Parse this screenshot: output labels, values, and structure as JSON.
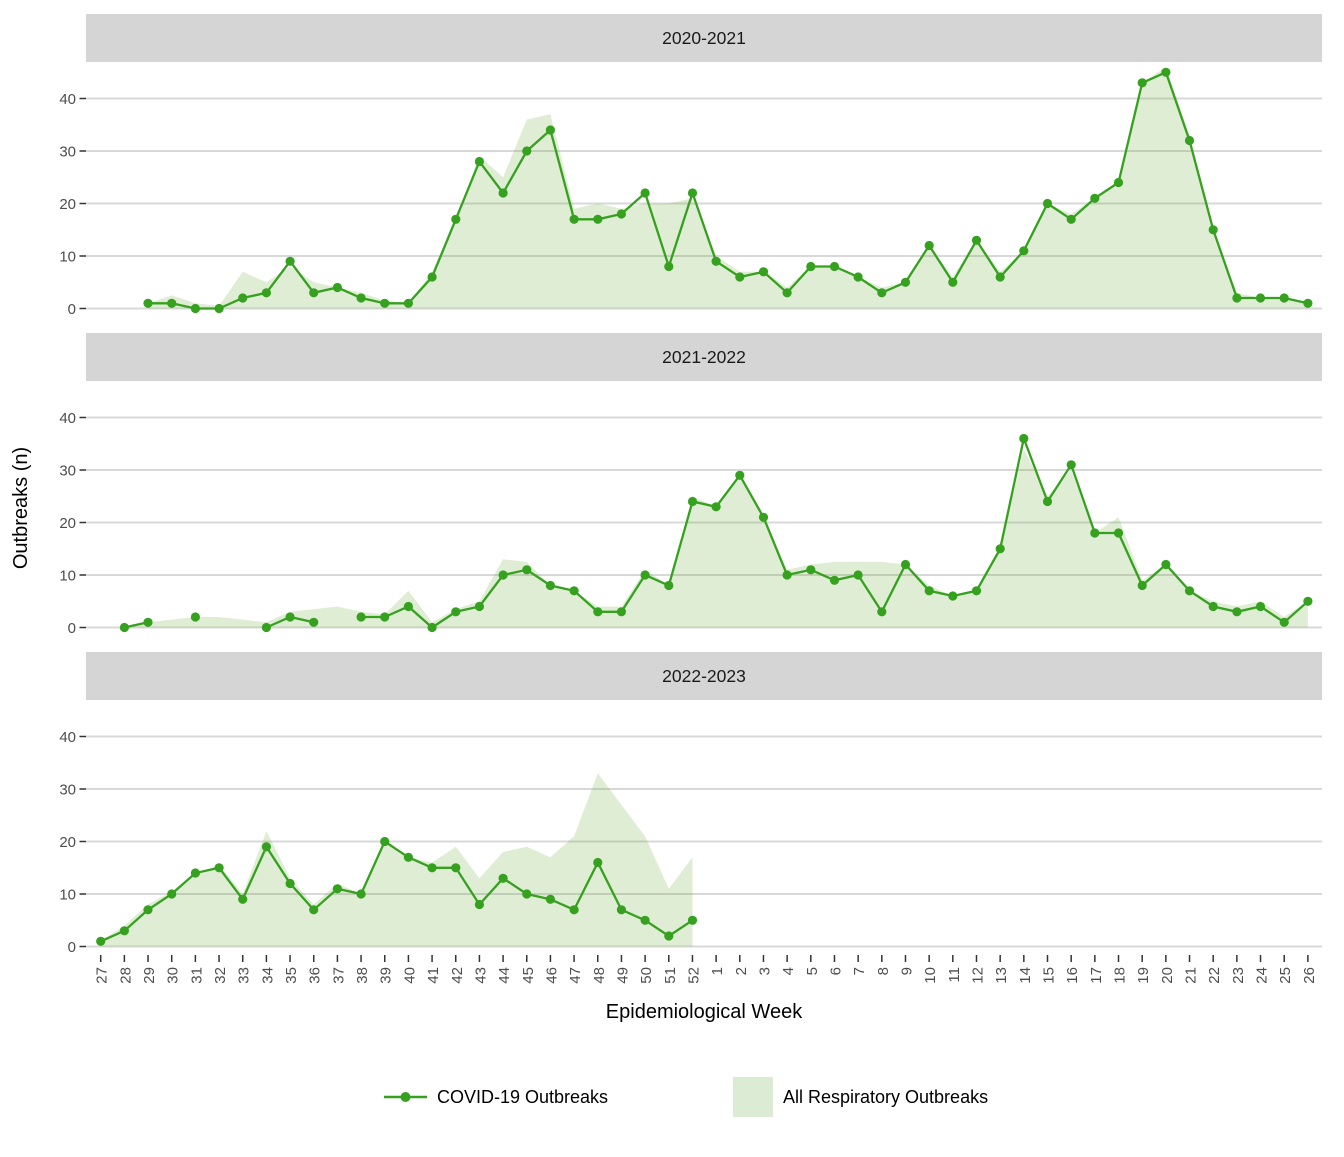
{
  "chart_data": {
    "type": "area+line",
    "xlabel": "Epidemiological Week",
    "ylabel": "Outbreaks (n)",
    "ylim": [
      0,
      47
    ],
    "y_ticks": [
      0,
      10,
      20,
      30,
      40
    ],
    "grid": "horizontal-major-only",
    "legend_position": "bottom",
    "categories": [
      "27",
      "28",
      "29",
      "30",
      "31",
      "32",
      "33",
      "34",
      "35",
      "36",
      "37",
      "38",
      "39",
      "40",
      "41",
      "42",
      "43",
      "44",
      "45",
      "46",
      "47",
      "48",
      "49",
      "50",
      "51",
      "52",
      "1",
      "2",
      "3",
      "4",
      "5",
      "6",
      "7",
      "8",
      "9",
      "10",
      "11",
      "12",
      "13",
      "14",
      "15",
      "16",
      "17",
      "18",
      "19",
      "20",
      "21",
      "22",
      "23",
      "24",
      "25",
      "26"
    ],
    "facets": [
      {
        "title": "2020-2021",
        "series": [
          {
            "name": "COVID-19 Outbreaks",
            "type": "line",
            "values": [
              null,
              null,
              1,
              1,
              0,
              0,
              2,
              3,
              9,
              3,
              4,
              2,
              1,
              1,
              6,
              17,
              28,
              22,
              30,
              34,
              17,
              17,
              18,
              22,
              8,
              22,
              9,
              6,
              7,
              3,
              8,
              8,
              6,
              3,
              5,
              12,
              5,
              13,
              6,
              11,
              20,
              17,
              21,
              24,
              43,
              45,
              32,
              15,
              2,
              2,
              2,
              1
            ]
          },
          {
            "name": "All Respiratory Outbreaks",
            "type": "area",
            "values": [
              null,
              null,
              1,
              2.5,
              1,
              0.5,
              7,
              5,
              8,
              5,
              4,
              3,
              1.5,
              1,
              7,
              17,
              29,
              25,
              36,
              37,
              19,
              20,
              19,
              20,
              20,
              21,
              10,
              7,
              7,
              4,
              8,
              8,
              6,
              4,
              5,
              12,
              6,
              13,
              7,
              11,
              20,
              18,
              21,
              24,
              43,
              46,
              33,
              15,
              3,
              2,
              2,
              1
            ]
          }
        ]
      },
      {
        "title": "2021-2022",
        "series": [
          {
            "name": "COVID-19 Outbreaks",
            "type": "line",
            "values": [
              null,
              0,
              1,
              null,
              2,
              null,
              null,
              0,
              2,
              1,
              null,
              2,
              2,
              4,
              0,
              3,
              4,
              10,
              11,
              8,
              7,
              3,
              3,
              10,
              8,
              24,
              23,
              29,
              21,
              10,
              11,
              9,
              10,
              3,
              12,
              7,
              6,
              7,
              15,
              36,
              24,
              31,
              18,
              18,
              8,
              12,
              7,
              4,
              3,
              4,
              1,
              5
            ]
          },
          {
            "name": "All Respiratory Outbreaks",
            "type": "area",
            "values": [
              null,
              0,
              1,
              1.5,
              2,
              2,
              1.5,
              1,
              3,
              3.5,
              4,
              3,
              2.5,
              7,
              1,
              3.5,
              5,
              13,
              12.5,
              8,
              7,
              4,
              4,
              11,
              8,
              25,
              23,
              29,
              21,
              11,
              12,
              12.5,
              12.5,
              12.5,
              12,
              8,
              6,
              7,
              15,
              34,
              25,
              30,
              18,
              21,
              9,
              12,
              7,
              5,
              4,
              5,
              2,
              5
            ]
          }
        ]
      },
      {
        "title": "2022-2023",
        "series": [
          {
            "name": "COVID-19 Outbreaks",
            "type": "line",
            "values": [
              1,
              3,
              7,
              10,
              14,
              15,
              9,
              19,
              12,
              7,
              11,
              10,
              20,
              17,
              15,
              15,
              8,
              13,
              10,
              9,
              7,
              16,
              7,
              5,
              2,
              5,
              null,
              null,
              null,
              null,
              null,
              null,
              null,
              null,
              null,
              null,
              null,
              null,
              null,
              null,
              null,
              null,
              null,
              null,
              null,
              null,
              null,
              null,
              null,
              null,
              null,
              null
            ]
          },
          {
            "name": "All Respiratory Outbreaks",
            "type": "area",
            "values": [
              1,
              4,
              8,
              10.5,
              14,
              15.5,
              10,
              22,
              13,
              8,
              12,
              10,
              20,
              17,
              16,
              19,
              13,
              18,
              19,
              17,
              21,
              33,
              27,
              21,
              11,
              17,
              null,
              null,
              null,
              null,
              null,
              null,
              null,
              null,
              null,
              null,
              null,
              null,
              null,
              null,
              null,
              null,
              null,
              null,
              null,
              null,
              null,
              null,
              null,
              null,
              null,
              null
            ]
          }
        ]
      }
    ],
    "legend": [
      {
        "label": "COVID-19 Outbreaks",
        "glyph": "line-with-point"
      },
      {
        "label": "All Respiratory Outbreaks",
        "glyph": "filled-square"
      }
    ],
    "colors": {
      "line": "#35a11f",
      "area_fill": "rgba(113,171,63,0.22)",
      "legend_fill": "#dcebd3",
      "strip_bg": "#d5d5d5",
      "grid": "#d8d8d8",
      "tick": "#333333",
      "tick_text": "#4d4d4d",
      "strip_text": "#1a1a1a",
      "title_text": "#000000"
    }
  }
}
